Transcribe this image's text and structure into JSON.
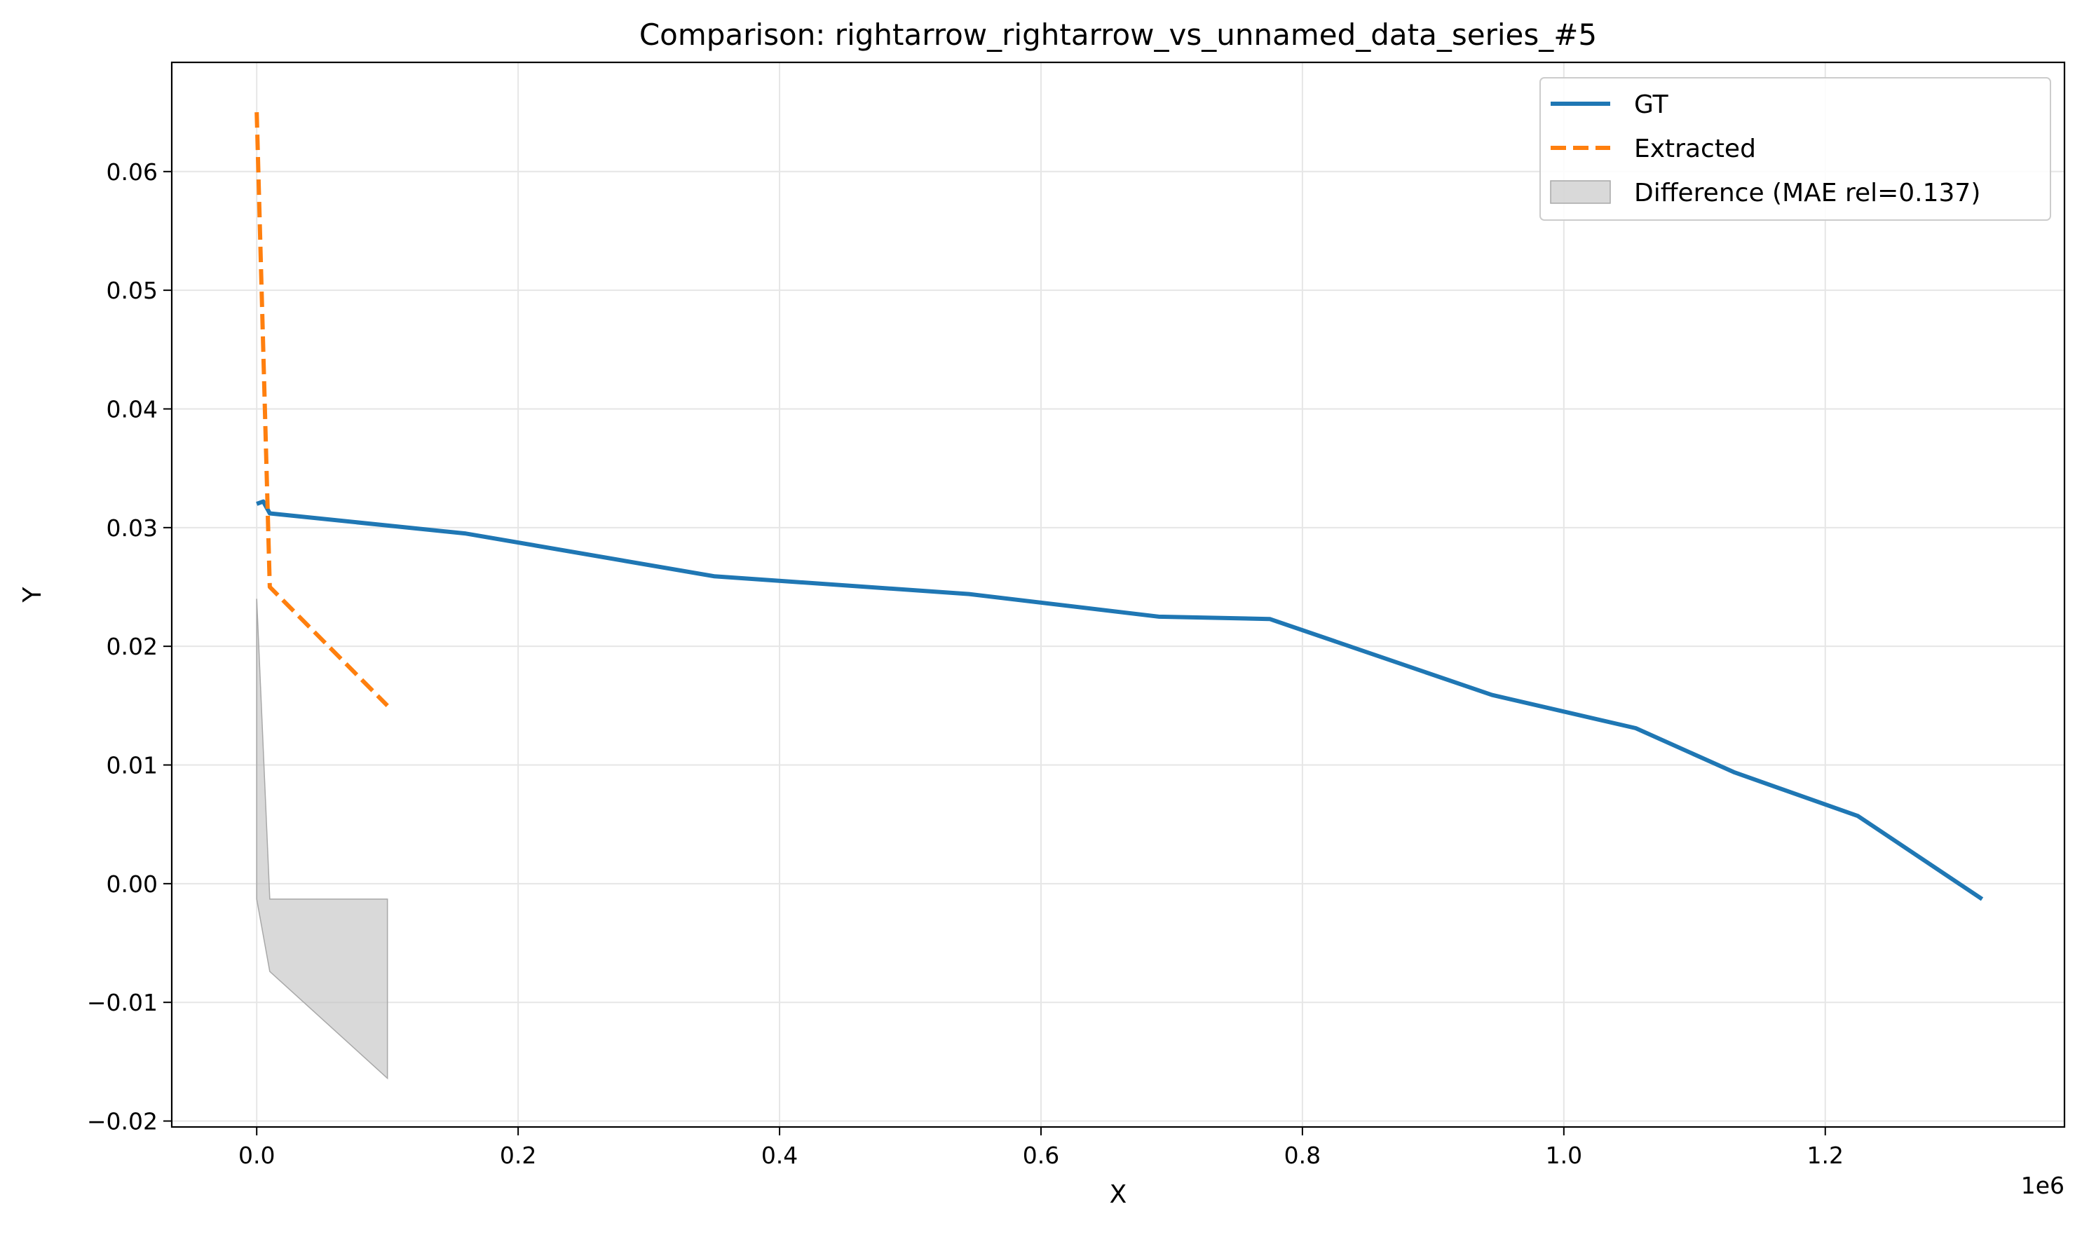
{
  "chart_data": {
    "type": "line",
    "title": "Comparison: rightarrow_rightarrow_vs_unnamed_data_series_#5",
    "xlabel": "X",
    "ylabel": "Y",
    "x_offset_label": "1e6",
    "xlim": [
      -65000,
      1383000
    ],
    "ylim": [
      -0.0205,
      0.0692
    ],
    "x_ticks": [
      0,
      200000,
      400000,
      600000,
      800000,
      1000000,
      1200000
    ],
    "x_tick_labels": [
      "0.0",
      "0.2",
      "0.4",
      "0.6",
      "0.8",
      "1.0",
      "1.2"
    ],
    "y_ticks": [
      -0.02,
      -0.01,
      0.0,
      0.01,
      0.02,
      0.03,
      0.04,
      0.05,
      0.06
    ],
    "y_tick_labels": [
      "−0.02",
      "−0.01",
      "0.00",
      "0.01",
      "0.02",
      "0.03",
      "0.04",
      "0.05",
      "0.06"
    ],
    "grid": true,
    "legend_position": "top-right",
    "series": [
      {
        "name": "GT",
        "color": "#1f77b4",
        "style": "solid",
        "x": [
          0,
          5000,
          10000,
          160000,
          350000,
          545000,
          690000,
          775000,
          945000,
          1055000,
          1130000,
          1225000,
          1320000
        ],
        "y": [
          0.032,
          0.0322,
          0.0312,
          0.0295,
          0.0259,
          0.0244,
          0.0225,
          0.0223,
          0.0159,
          0.0131,
          0.0094,
          0.0057,
          -0.0013
        ]
      },
      {
        "name": "Extracted",
        "color": "#ff7f0e",
        "style": "dashed",
        "x": [
          0,
          10000,
          100000
        ],
        "y": [
          0.065,
          0.025,
          0.015
        ]
      }
    ],
    "difference": {
      "name": "Difference (MAE rel=0.137)",
      "color": "#bfbfbf",
      "x": [
        0,
        10000,
        100000
      ],
      "upper": [
        0.024,
        -0.0013,
        -0.0013
      ],
      "lower": [
        -0.0013,
        -0.0074,
        -0.0164
      ]
    }
  }
}
